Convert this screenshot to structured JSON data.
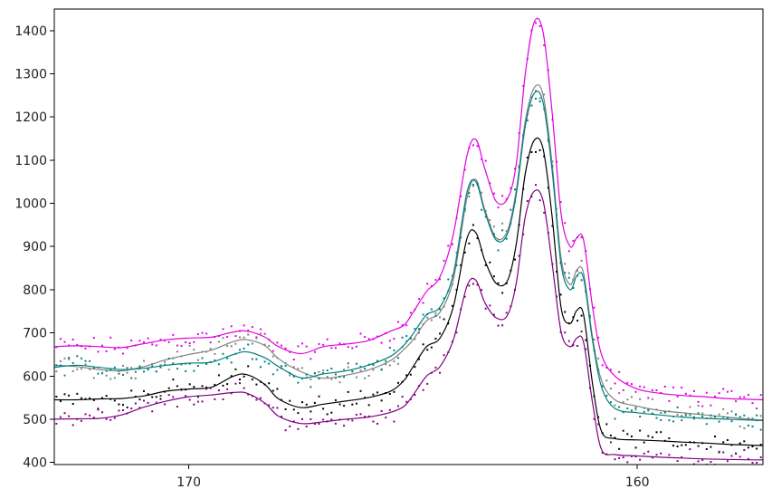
{
  "chart_data": {
    "type": "line",
    "title": "",
    "xlabel": "",
    "ylabel": "",
    "x_reversed": true,
    "xlim": [
      173,
      157.2
    ],
    "ylim": [
      395,
      1450
    ],
    "x_ticks": [
      170,
      160
    ],
    "y_ticks": [
      400,
      500,
      600,
      700,
      800,
      900,
      1000,
      1100,
      1200,
      1300,
      1400
    ],
    "grid": false,
    "legend": "none",
    "x_knots": [
      173,
      172.5,
      172,
      171.5,
      171,
      170.5,
      170,
      169.5,
      169,
      168.7,
      168.3,
      168,
      167.5,
      167,
      166.5,
      166,
      165.5,
      165.2,
      165,
      164.7,
      164.4,
      164.1,
      163.8,
      163.6,
      163.4,
      163.15,
      162.9,
      162.7,
      162.5,
      162.3,
      162.1,
      161.9,
      161.7,
      161.5,
      161.35,
      161.2,
      161.0,
      160.8,
      160.5,
      160.0,
      159.5,
      159.0,
      158.5,
      158.0,
      157.5,
      157.2
    ],
    "series": [
      {
        "color": "#e000e0",
        "values": [
          668,
          670,
          668,
          666,
          675,
          684,
          688,
          690,
          702,
          704,
          690,
          668,
          652,
          668,
          674,
          682,
          704,
          718,
          748,
          796,
          830,
          930,
          1110,
          1148,
          1080,
          1005,
          1010,
          1090,
          1298,
          1420,
          1395,
          1210,
          975,
          900,
          920,
          915,
          760,
          650,
          600,
          570,
          560,
          555,
          552,
          548,
          546,
          545
        ]
      },
      {
        "color": "#808080",
        "values": [
          625,
          622,
          615,
          612,
          622,
          638,
          650,
          660,
          680,
          684,
          670,
          640,
          610,
          595,
          602,
          614,
          636,
          662,
          684,
          728,
          748,
          825,
          1012,
          1055,
          985,
          920,
          935,
          1030,
          1190,
          1268,
          1250,
          1090,
          872,
          812,
          846,
          838,
          690,
          590,
          545,
          530,
          520,
          515,
          510,
          505,
          500,
          498
        ]
      },
      {
        "color": "#008080",
        "values": [
          620,
          625,
          620,
          615,
          618,
          625,
          630,
          632,
          650,
          656,
          642,
          622,
          596,
          605,
          612,
          625,
          646,
          672,
          698,
          742,
          760,
          838,
          1025,
          1050,
          980,
          915,
          928,
          1020,
          1178,
          1255,
          1232,
          1075,
          858,
          800,
          832,
          826,
          682,
          575,
          525,
          515,
          510,
          505,
          502,
          500,
          498,
          497
        ]
      },
      {
        "color": "#000000",
        "values": [
          545,
          545,
          547,
          548,
          554,
          565,
          570,
          574,
          600,
          603,
          580,
          547,
          527,
          535,
          542,
          550,
          565,
          590,
          622,
          668,
          688,
          762,
          918,
          932,
          868,
          815,
          820,
          905,
          1068,
          1146,
          1125,
          968,
          758,
          722,
          752,
          742,
          582,
          472,
          455,
          452,
          450,
          447,
          445,
          442,
          440,
          439
        ]
      },
      {
        "color": "#800080",
        "values": [
          500,
          501,
          502,
          510,
          528,
          542,
          552,
          556,
          562,
          560,
          537,
          507,
          490,
          494,
          500,
          505,
          516,
          530,
          556,
          600,
          622,
          685,
          808,
          822,
          770,
          735,
          740,
          815,
          968,
          1028,
          1005,
          860,
          702,
          668,
          688,
          678,
          538,
          430,
          418,
          415,
          412,
          410,
          408,
          407,
          406,
          406
        ]
      }
    ]
  }
}
